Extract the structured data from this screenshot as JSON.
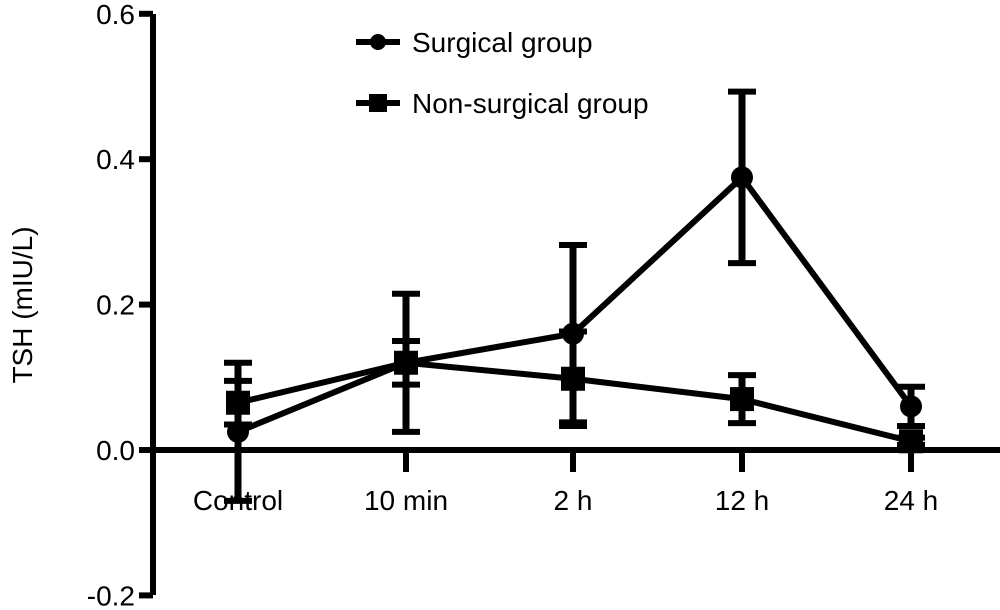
{
  "chart_data": {
    "type": "line",
    "title": "",
    "xlabel": "",
    "ylabel": "TSH (mIU/L)",
    "categories": [
      "Control",
      "10 min",
      "2 h",
      "12 h",
      "24 h"
    ],
    "y_ticks": [
      "0.6",
      "0.4",
      "0.2",
      "0.0",
      "-0.2"
    ],
    "ylim": [
      -0.2,
      0.6
    ],
    "grid": false,
    "legend_position": "top-center",
    "series": [
      {
        "name": "Surgical group",
        "marker": "circle",
        "values": [
          0.025,
          0.12,
          0.16,
          0.375,
          0.06
        ],
        "error": [
          0.095,
          0.095,
          0.122,
          0.118,
          0.027
        ]
      },
      {
        "name": "Non-surgical group",
        "marker": "square",
        "values": [
          0.065,
          0.12,
          0.098,
          0.07,
          0.012
        ],
        "error": [
          0.03,
          0.03,
          0.065,
          0.033,
          0.005
        ]
      }
    ]
  }
}
